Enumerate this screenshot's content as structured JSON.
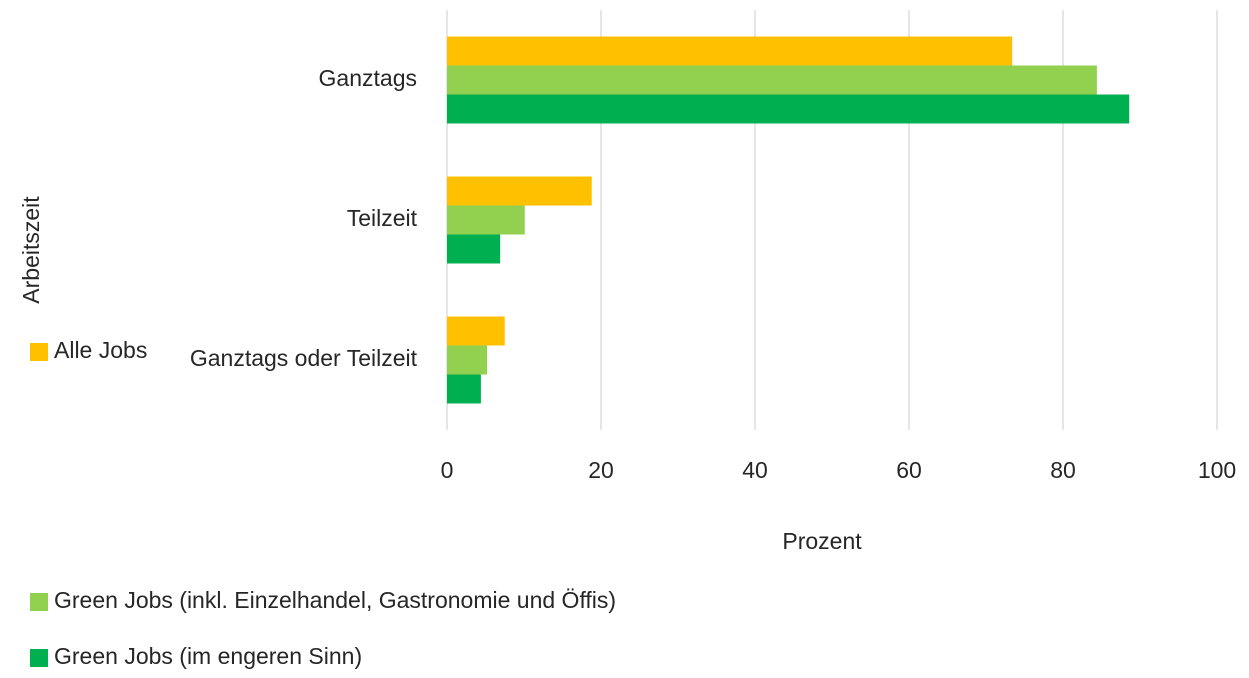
{
  "chart_data": {
    "type": "barh",
    "y_label": "Arbeitszeit",
    "x_label": "Prozent",
    "categories": [
      "Ganztags",
      "Teilzeit",
      "Ganztags oder Teilzeit"
    ],
    "series": [
      {
        "name": "Alle Jobs",
        "color": "#FFC000",
        "values": [
          73.4,
          18.8,
          7.5
        ]
      },
      {
        "name": "Green Jobs (inkl. Einzelhandel, Gastronomie und Öffis)",
        "color": "#92D050",
        "values": [
          84.4,
          10.1,
          5.2
        ]
      },
      {
        "name": "Green Jobs (im engeren Sinn)",
        "color": "#00B050",
        "values": [
          88.6,
          6.9,
          4.4
        ]
      }
    ],
    "xlim": [
      0,
      100
    ],
    "xticks": [
      0,
      20,
      40,
      60,
      80,
      100
    ],
    "grid": true,
    "legend": "bottom-left"
  }
}
